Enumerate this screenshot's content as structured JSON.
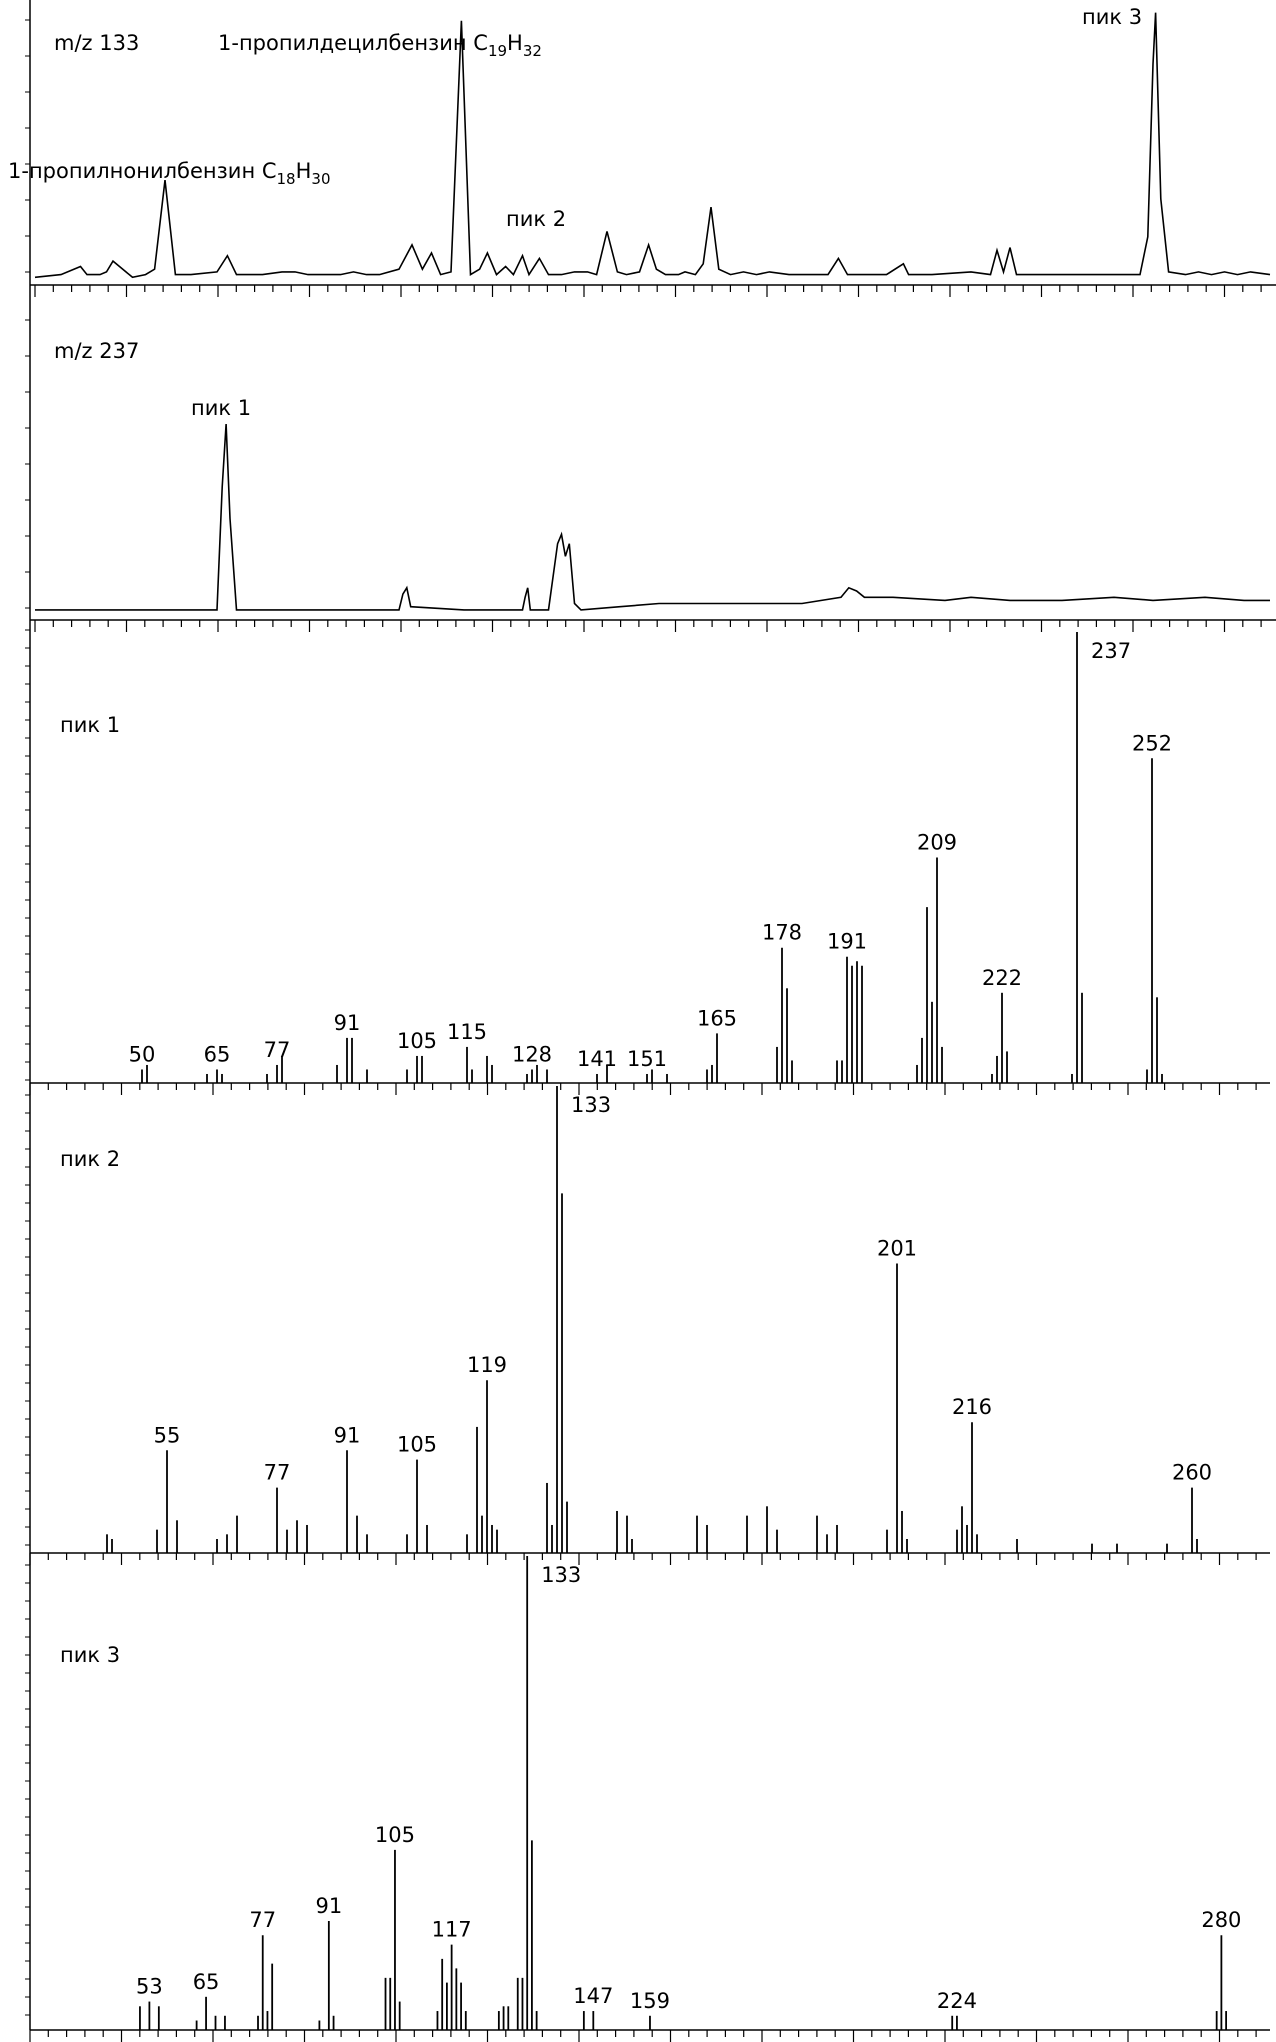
{
  "figure": {
    "panel_titles": [
      "m/z 133",
      "m/z 237",
      "пик 1",
      "пик 2",
      "пик 3"
    ]
  },
  "chart_data": [
    {
      "type": "line",
      "title": "m/z 133",
      "series": [
        {
          "values": [
            [
              0,
              0.01
            ],
            [
              20,
              0.02
            ],
            [
              35,
              0.05
            ],
            [
              40,
              0.02
            ],
            [
              50,
              0.02
            ],
            [
              55,
              0.03
            ],
            [
              60,
              0.07
            ],
            [
              65,
              0.05
            ],
            [
              75,
              0.01
            ],
            [
              85,
              0.02
            ],
            [
              92,
              0.04
            ],
            [
              100,
              0.37
            ],
            [
              108,
              0.02
            ],
            [
              120,
              0.02
            ],
            [
              140,
              0.03
            ],
            [
              148,
              0.09
            ],
            [
              155,
              0.02
            ],
            [
              165,
              0.02
            ],
            [
              175,
              0.02
            ],
            [
              190,
              0.03
            ],
            [
              200,
              0.03
            ],
            [
              210,
              0.02
            ],
            [
              220,
              0.02
            ],
            [
              228,
              0.02
            ],
            [
              235,
              0.02
            ],
            [
              245,
              0.03
            ],
            [
              255,
              0.02
            ],
            [
              265,
              0.02
            ],
            [
              280,
              0.04
            ],
            [
              290,
              0.13
            ],
            [
              298,
              0.04
            ],
            [
              305,
              0.1
            ],
            [
              312,
              0.02
            ],
            [
              320,
              0.03
            ],
            [
              328,
              0.96
            ],
            [
              335,
              0.02
            ],
            [
              342,
              0.04
            ],
            [
              348,
              0.1
            ],
            [
              355,
              0.02
            ],
            [
              362,
              0.05
            ],
            [
              368,
              0.02
            ],
            [
              375,
              0.09
            ],
            [
              380,
              0.02
            ],
            [
              388,
              0.08
            ],
            [
              395,
              0.02
            ],
            [
              405,
              0.02
            ],
            [
              415,
              0.03
            ],
            [
              425,
              0.03
            ],
            [
              432,
              0.02
            ],
            [
              440,
              0.18
            ],
            [
              448,
              0.03
            ],
            [
              455,
              0.02
            ],
            [
              465,
              0.03
            ],
            [
              472,
              0.13
            ],
            [
              478,
              0.04
            ],
            [
              485,
              0.02
            ],
            [
              495,
              0.02
            ],
            [
              500,
              0.03
            ],
            [
              508,
              0.02
            ],
            [
              514,
              0.06
            ],
            [
              520,
              0.27
            ],
            [
              526,
              0.04
            ],
            [
              535,
              0.02
            ],
            [
              545,
              0.03
            ],
            [
              555,
              0.02
            ],
            [
              565,
              0.03
            ],
            [
              580,
              0.02
            ],
            [
              595,
              0.02
            ],
            [
              610,
              0.02
            ],
            [
              618,
              0.08
            ],
            [
              625,
              0.02
            ],
            [
              640,
              0.02
            ],
            [
              655,
              0.02
            ],
            [
              668,
              0.06
            ],
            [
              672,
              0.02
            ],
            [
              690,
              0.02
            ],
            [
              720,
              0.03
            ],
            [
              735,
              0.02
            ],
            [
              740,
              0.11
            ],
            [
              745,
              0.03
            ],
            [
              750,
              0.12
            ],
            [
              755,
              0.02
            ],
            [
              770,
              0.02
            ],
            [
              785,
              0.02
            ],
            [
              800,
              0.02
            ],
            [
              820,
              0.02
            ],
            [
              840,
              0.02
            ],
            [
              850,
              0.02
            ],
            [
              856,
              0.16
            ],
            [
              860,
              0.8
            ],
            [
              862,
              0.99
            ],
            [
              866,
              0.3
            ],
            [
              872,
              0.03
            ],
            [
              885,
              0.02
            ],
            [
              895,
              0.03
            ],
            [
              905,
              0.02
            ],
            [
              915,
              0.03
            ],
            [
              925,
              0.02
            ],
            [
              935,
              0.03
            ],
            [
              950,
              0.02
            ]
          ]
        }
      ],
      "peak_annotations": [
        "1-пропилнонилбензин C18H30",
        "1-пропилдецилбензин C19H32",
        "пик 2",
        "пик 3"
      ]
    },
    {
      "type": "line",
      "title": "m/z 237",
      "series": [
        {
          "values": [
            [
              0,
              0.01
            ],
            [
              100,
              0.01
            ],
            [
              140,
              0.01
            ],
            [
              144,
              0.4
            ],
            [
              147,
              0.6
            ],
            [
              150,
              0.3
            ],
            [
              155,
              0.01
            ],
            [
              200,
              0.01
            ],
            [
              280,
              0.01
            ],
            [
              283,
              0.06
            ],
            [
              286,
              0.08
            ],
            [
              289,
              0.02
            ],
            [
              330,
              0.01
            ],
            [
              375,
              0.01
            ],
            [
              377,
              0.05
            ],
            [
              379,
              0.08
            ],
            [
              381,
              0.01
            ],
            [
              395,
              0.01
            ],
            [
              402,
              0.22
            ],
            [
              405,
              0.25
            ],
            [
              408,
              0.18
            ],
            [
              411,
              0.22
            ],
            [
              415,
              0.03
            ],
            [
              420,
              0.01
            ],
            [
              450,
              0.02
            ],
            [
              480,
              0.03
            ],
            [
              520,
              0.03
            ],
            [
              560,
              0.03
            ],
            [
              590,
              0.03
            ],
            [
              620,
              0.05
            ],
            [
              626,
              0.08
            ],
            [
              632,
              0.07
            ],
            [
              638,
              0.05
            ],
            [
              660,
              0.05
            ],
            [
              700,
              0.04
            ],
            [
              720,
              0.05
            ],
            [
              750,
              0.04
            ],
            [
              790,
              0.04
            ],
            [
              830,
              0.05
            ],
            [
              860,
              0.04
            ],
            [
              900,
              0.05
            ],
            [
              930,
              0.04
            ],
            [
              950,
              0.04
            ]
          ]
        }
      ],
      "peak_annotations": [
        "пик 1"
      ]
    },
    {
      "type": "bar",
      "title": "пик 1",
      "xlim": [
        40,
        265
      ],
      "peaks": [
        [
          50,
          3
        ],
        [
          51,
          4
        ],
        [
          63,
          2
        ],
        [
          65,
          3
        ],
        [
          66,
          2
        ],
        [
          75,
          2
        ],
        [
          77,
          4
        ],
        [
          78,
          6
        ],
        [
          89,
          4
        ],
        [
          91,
          10
        ],
        [
          92,
          10
        ],
        [
          95,
          3
        ],
        [
          103,
          3
        ],
        [
          105,
          6
        ],
        [
          106,
          6
        ],
        [
          115,
          8
        ],
        [
          116,
          3
        ],
        [
          119,
          6
        ],
        [
          120,
          4
        ],
        [
          127,
          2
        ],
        [
          128,
          3
        ],
        [
          129,
          4
        ],
        [
          131,
          3
        ],
        [
          141,
          2
        ],
        [
          143,
          4
        ],
        [
          151,
          2
        ],
        [
          152,
          3
        ],
        [
          155,
          2
        ],
        [
          163,
          3
        ],
        [
          164,
          4
        ],
        [
          165,
          11
        ],
        [
          177,
          8
        ],
        [
          178,
          30
        ],
        [
          179,
          21
        ],
        [
          180,
          5
        ],
        [
          189,
          5
        ],
        [
          190,
          5
        ],
        [
          191,
          28
        ],
        [
          192,
          26
        ],
        [
          193,
          27
        ],
        [
          194,
          26
        ],
        [
          205,
          4
        ],
        [
          206,
          10
        ],
        [
          207,
          39
        ],
        [
          208,
          18
        ],
        [
          209,
          50
        ],
        [
          210,
          8
        ],
        [
          220,
          2
        ],
        [
          221,
          6
        ],
        [
          222,
          20
        ],
        [
          223,
          7
        ],
        [
          236,
          2
        ],
        [
          237,
          100
        ],
        [
          238,
          20
        ],
        [
          251,
          3
        ],
        [
          252,
          72
        ],
        [
          253,
          19
        ],
        [
          254,
          2
        ]
      ],
      "labels": [
        "50",
        "65",
        "77",
        "91",
        "105",
        "115",
        "128",
        "141",
        "151",
        "165",
        "178",
        "191",
        "209",
        "222",
        "237",
        "252"
      ]
    },
    {
      "type": "bar",
      "title": "пик 2",
      "xlim": [
        40,
        265
      ],
      "peaks": [
        [
          43,
          4
        ],
        [
          44,
          3
        ],
        [
          53,
          5
        ],
        [
          55,
          22
        ],
        [
          57,
          7
        ],
        [
          65,
          3
        ],
        [
          67,
          4
        ],
        [
          69,
          8
        ],
        [
          77,
          14
        ],
        [
          79,
          5
        ],
        [
          81,
          7
        ],
        [
          83,
          6
        ],
        [
          91,
          22
        ],
        [
          93,
          8
        ],
        [
          95,
          4
        ],
        [
          103,
          4
        ],
        [
          105,
          20
        ],
        [
          107,
          6
        ],
        [
          115,
          4
        ],
        [
          117,
          27
        ],
        [
          118,
          8
        ],
        [
          119,
          37
        ],
        [
          120,
          6
        ],
        [
          121,
          5
        ],
        [
          131,
          15
        ],
        [
          132,
          6
        ],
        [
          133,
          100
        ],
        [
          134,
          77
        ],
        [
          135,
          11
        ],
        [
          145,
          9
        ],
        [
          147,
          8
        ],
        [
          148,
          3
        ],
        [
          161,
          8
        ],
        [
          163,
          6
        ],
        [
          171,
          8
        ],
        [
          175,
          10
        ],
        [
          177,
          5
        ],
        [
          185,
          8
        ],
        [
          187,
          4
        ],
        [
          189,
          6
        ],
        [
          199,
          5
        ],
        [
          201,
          62
        ],
        [
          202,
          9
        ],
        [
          203,
          3
        ],
        [
          213,
          5
        ],
        [
          214,
          10
        ],
        [
          215,
          6
        ],
        [
          216,
          28
        ],
        [
          217,
          4
        ],
        [
          225,
          3
        ],
        [
          240,
          2
        ],
        [
          245,
          2
        ],
        [
          255,
          2
        ],
        [
          260,
          14
        ],
        [
          261,
          3
        ]
      ],
      "labels": [
        "55",
        "77",
        "91",
        "105",
        "119",
        "133",
        "201",
        "216",
        "260"
      ]
    },
    {
      "type": "bar",
      "title": "пик 3",
      "xlim": [
        40,
        285
      ],
      "peaks": [
        [
          51,
          5
        ],
        [
          53,
          6
        ],
        [
          55,
          5
        ],
        [
          63,
          2
        ],
        [
          65,
          7
        ],
        [
          67,
          3
        ],
        [
          69,
          3
        ],
        [
          76,
          3
        ],
        [
          77,
          20
        ],
        [
          78,
          4
        ],
        [
          79,
          14
        ],
        [
          89,
          2
        ],
        [
          91,
          23
        ],
        [
          92,
          3
        ],
        [
          103,
          11
        ],
        [
          104,
          11
        ],
        [
          105,
          38
        ],
        [
          106,
          6
        ],
        [
          114,
          4
        ],
        [
          115,
          15
        ],
        [
          116,
          10
        ],
        [
          117,
          18
        ],
        [
          118,
          13
        ],
        [
          119,
          10
        ],
        [
          120,
          4
        ],
        [
          127,
          4
        ],
        [
          128,
          5
        ],
        [
          129,
          5
        ],
        [
          131,
          11
        ],
        [
          132,
          11
        ],
        [
          133,
          100
        ],
        [
          134,
          40
        ],
        [
          135,
          4
        ],
        [
          145,
          4
        ],
        [
          147,
          4
        ],
        [
          159,
          3
        ],
        [
          223,
          3
        ],
        [
          224,
          3
        ],
        [
          279,
          4
        ],
        [
          280,
          20
        ],
        [
          281,
          4
        ]
      ],
      "labels": [
        "53",
        "65",
        "77",
        "91",
        "105",
        "117",
        "133",
        "147",
        "159",
        "224",
        "280"
      ]
    }
  ]
}
